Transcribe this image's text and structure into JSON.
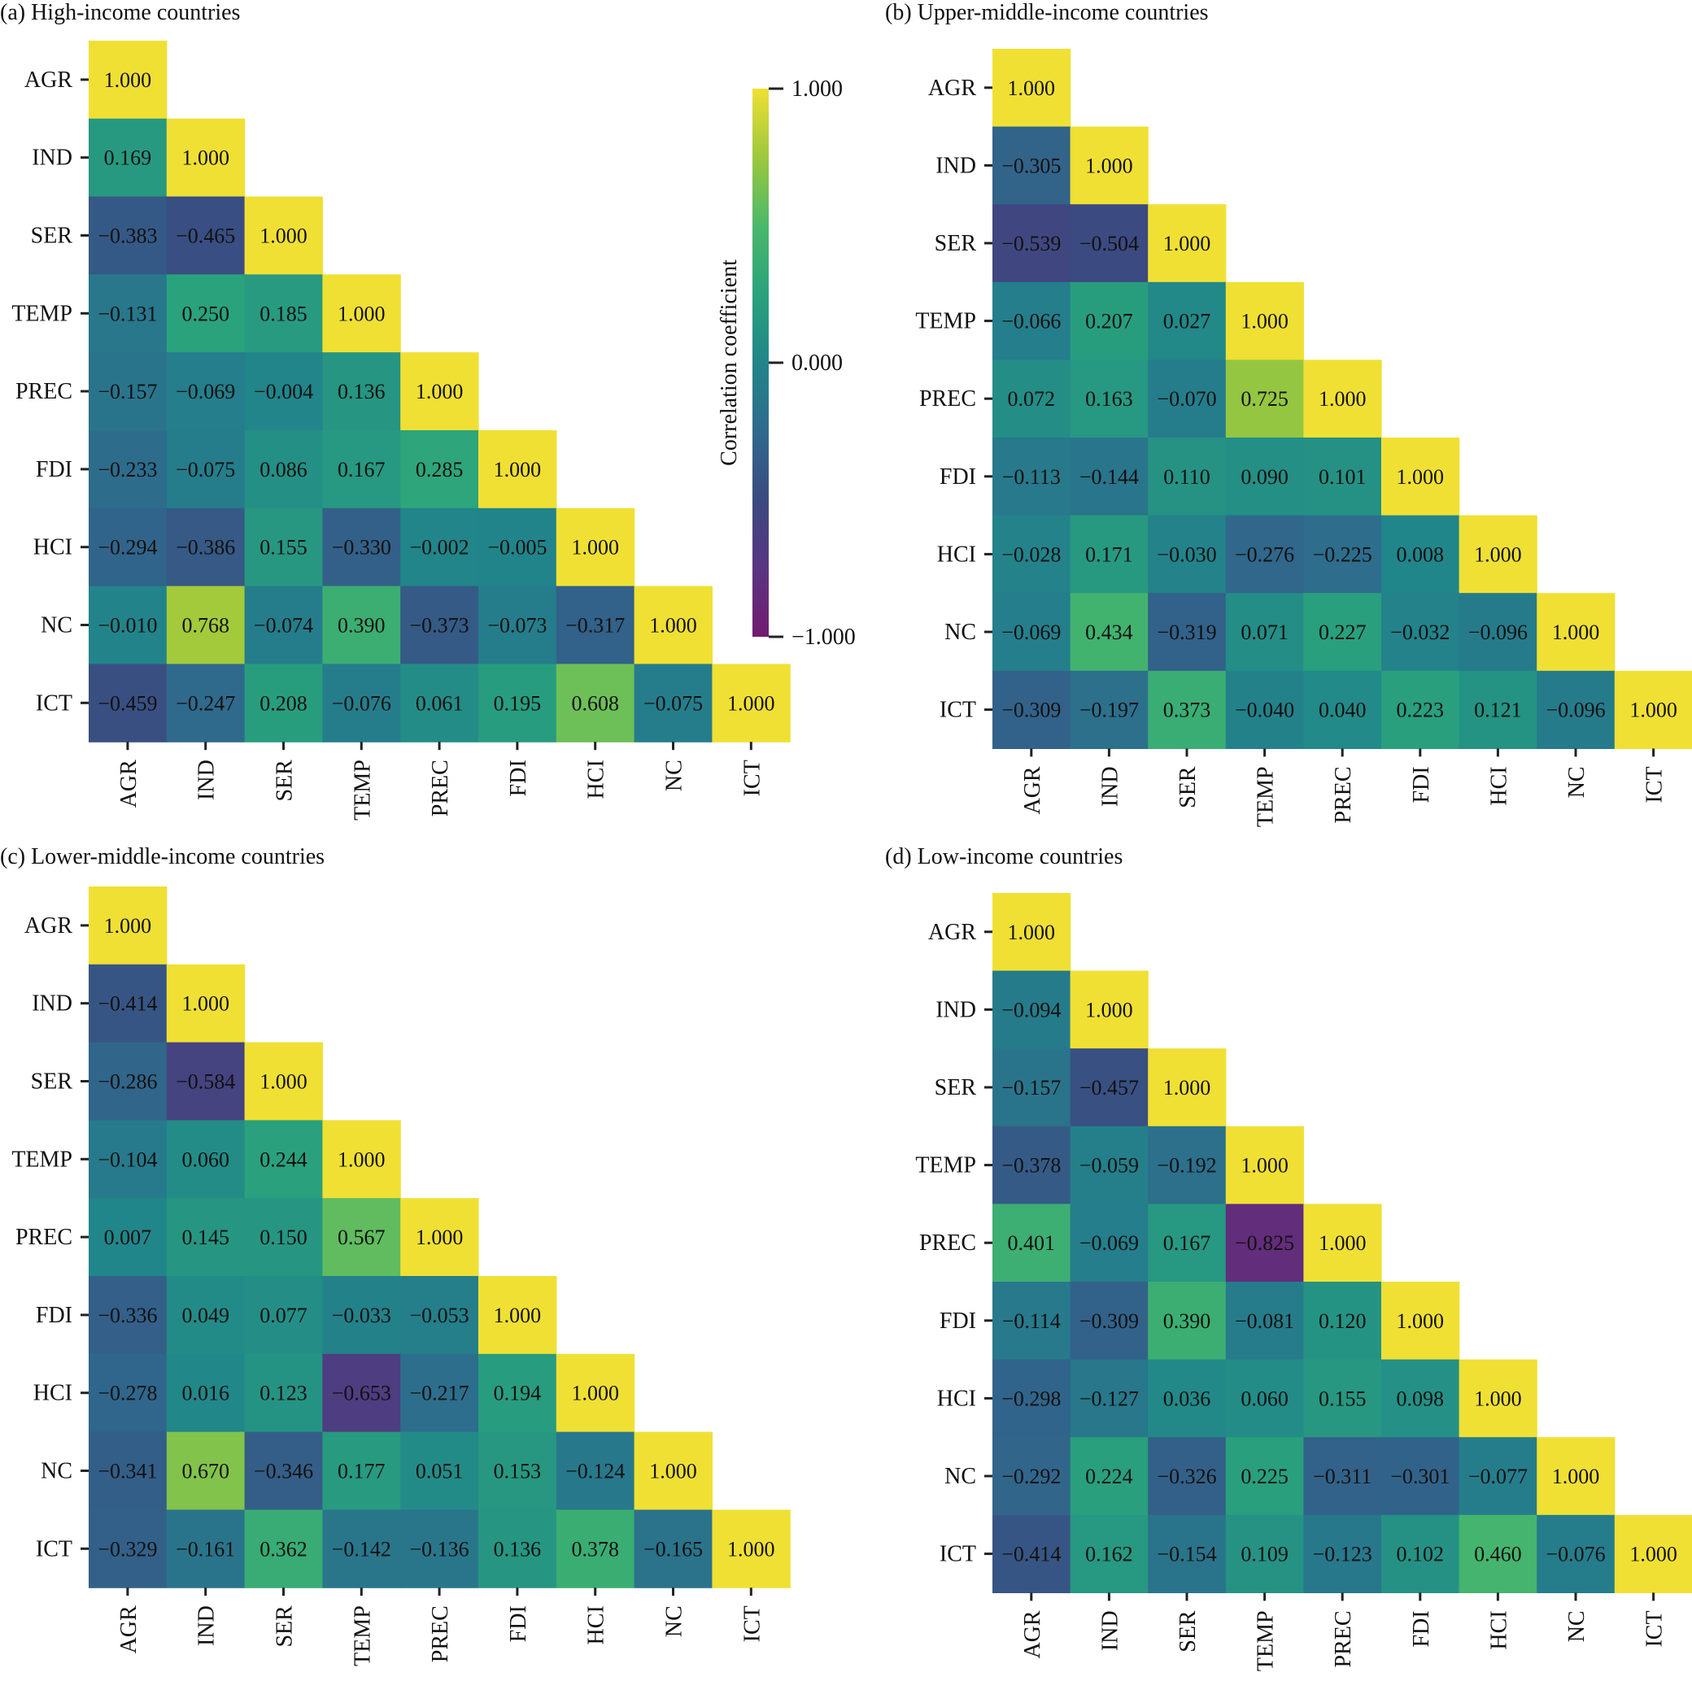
{
  "chart_data": {
    "type": "heatmap",
    "figure": "Lower-triangular correlation matrices by income group",
    "variables": [
      "AGR",
      "IND",
      "SER",
      "TEMP",
      "PREC",
      "FDI",
      "HCI",
      "NC",
      "ICT"
    ],
    "colorbar": {
      "label": "Correlation coefficient",
      "range": [
        -1.0,
        1.0
      ],
      "ticks": [
        1.0,
        0.0,
        -1.0
      ],
      "tick_labels": [
        "1.000",
        "0.000",
        "−1.000"
      ],
      "colormap": [
        "#731b70",
        "#5a3580",
        "#3b4a80",
        "#2f6a8c",
        "#21858a",
        "#2aa27c",
        "#4ab86b",
        "#9cc83c",
        "#f0e034"
      ]
    },
    "panels": [
      {
        "title": "(a) High-income countries",
        "rows": [
          [
            1.0
          ],
          [
            0.169,
            1.0
          ],
          [
            -0.383,
            -0.465,
            1.0
          ],
          [
            -0.131,
            0.25,
            0.185,
            1.0
          ],
          [
            -0.157,
            -0.069,
            -0.004,
            0.136,
            1.0
          ],
          [
            -0.233,
            -0.075,
            0.086,
            0.167,
            0.285,
            1.0
          ],
          [
            -0.294,
            -0.386,
            0.155,
            -0.33,
            -0.002,
            -0.005,
            1.0
          ],
          [
            -0.01,
            0.768,
            -0.074,
            0.39,
            -0.373,
            -0.073,
            -0.317,
            1.0
          ],
          [
            -0.459,
            -0.247,
            0.208,
            -0.076,
            0.061,
            0.195,
            0.608,
            -0.075,
            1.0
          ]
        ]
      },
      {
        "title": "(b) Upper-middle-income countries",
        "rows": [
          [
            1.0
          ],
          [
            -0.305,
            1.0
          ],
          [
            -0.539,
            -0.504,
            1.0
          ],
          [
            -0.066,
            0.207,
            0.027,
            1.0
          ],
          [
            0.072,
            0.163,
            -0.07,
            0.725,
            1.0
          ],
          [
            -0.113,
            -0.144,
            0.11,
            0.09,
            0.101,
            1.0
          ],
          [
            -0.028,
            0.171,
            -0.03,
            -0.276,
            -0.225,
            0.008,
            1.0
          ],
          [
            -0.069,
            0.434,
            -0.319,
            0.071,
            0.227,
            -0.032,
            -0.096,
            1.0
          ],
          [
            -0.309,
            -0.197,
            0.373,
            -0.04,
            0.04,
            0.223,
            0.121,
            -0.096,
            1.0
          ]
        ]
      },
      {
        "title": "(c) Lower-middle-income countries",
        "rows": [
          [
            1.0
          ],
          [
            -0.414,
            1.0
          ],
          [
            -0.286,
            -0.584,
            1.0
          ],
          [
            -0.104,
            0.06,
            0.244,
            1.0
          ],
          [
            0.007,
            0.145,
            0.15,
            0.567,
            1.0
          ],
          [
            -0.336,
            0.049,
            0.077,
            -0.033,
            -0.053,
            1.0
          ],
          [
            -0.278,
            0.016,
            0.123,
            -0.653,
            -0.217,
            0.194,
            1.0
          ],
          [
            -0.341,
            0.67,
            -0.346,
            0.177,
            0.051,
            0.153,
            -0.124,
            1.0
          ],
          [
            -0.329,
            -0.161,
            0.362,
            -0.142,
            -0.136,
            0.136,
            0.378,
            -0.165,
            1.0
          ]
        ]
      },
      {
        "title": "(d) Low-income countries",
        "rows": [
          [
            1.0
          ],
          [
            -0.094,
            1.0
          ],
          [
            -0.157,
            -0.457,
            1.0
          ],
          [
            -0.378,
            -0.059,
            -0.192,
            1.0
          ],
          [
            0.401,
            -0.069,
            0.167,
            -0.825,
            1.0
          ],
          [
            -0.114,
            -0.309,
            0.39,
            -0.081,
            0.12,
            1.0
          ],
          [
            -0.298,
            -0.127,
            0.036,
            0.06,
            0.155,
            0.098,
            1.0
          ],
          [
            -0.292,
            0.224,
            -0.326,
            0.225,
            -0.311,
            -0.301,
            -0.077,
            1.0
          ],
          [
            -0.414,
            0.162,
            -0.154,
            0.109,
            -0.123,
            0.102,
            0.46,
            -0.076,
            1.0
          ]
        ]
      }
    ]
  }
}
